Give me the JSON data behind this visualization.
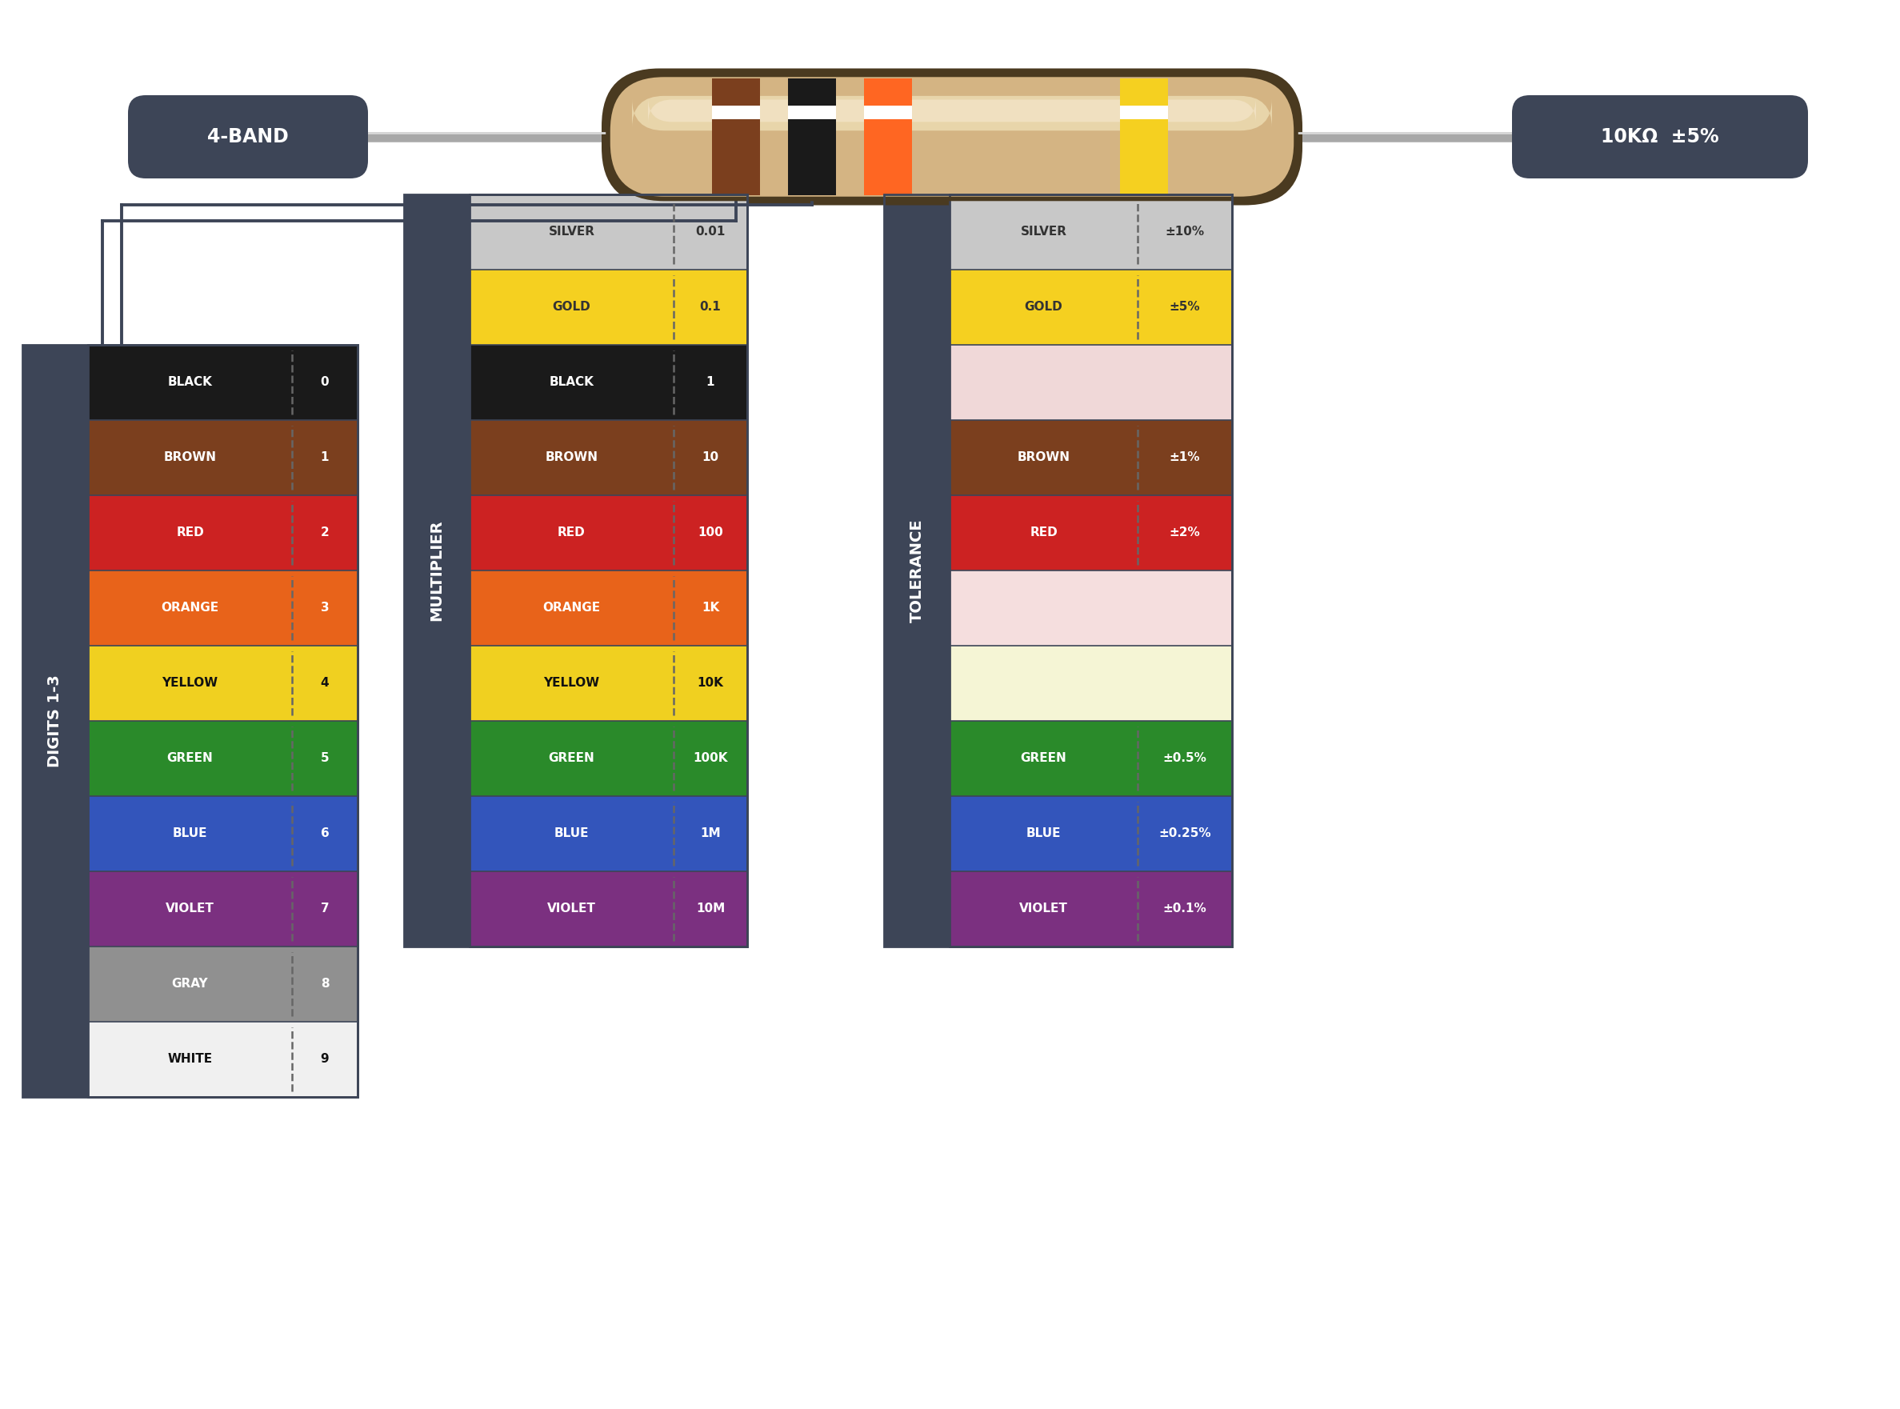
{
  "bg_color": "#ffffff",
  "dark_bg": "#3d4557",
  "resistor_body_color": "#d4b483",
  "digits_rows": [
    {
      "name": "BLACK",
      "color": "#1a1a1a",
      "value": "0",
      "text_color": "#ffffff"
    },
    {
      "name": "BROWN",
      "color": "#7b3f1e",
      "value": "1",
      "text_color": "#ffffff"
    },
    {
      "name": "RED",
      "color": "#cc2222",
      "value": "2",
      "text_color": "#ffffff"
    },
    {
      "name": "ORANGE",
      "color": "#e8631a",
      "value": "3",
      "text_color": "#ffffff"
    },
    {
      "name": "YELLOW",
      "color": "#f0d020",
      "value": "4",
      "text_color": "#111111"
    },
    {
      "name": "GREEN",
      "color": "#2a8a2a",
      "value": "5",
      "text_color": "#ffffff"
    },
    {
      "name": "BLUE",
      "color": "#3355bb",
      "value": "6",
      "text_color": "#ffffff"
    },
    {
      "name": "VIOLET",
      "color": "#7b3080",
      "value": "7",
      "text_color": "#ffffff"
    },
    {
      "name": "GRAY",
      "color": "#909090",
      "value": "8",
      "text_color": "#ffffff"
    },
    {
      "name": "WHITE",
      "color": "#f0f0f0",
      "value": "9",
      "text_color": "#111111"
    }
  ],
  "multiplier_rows": [
    {
      "name": "SILVER",
      "color": "#c8c8c8",
      "value": "0.01",
      "text_color": "#333333"
    },
    {
      "name": "GOLD",
      "color": "#f5d020",
      "value": "0.1",
      "text_color": "#333333"
    },
    {
      "name": "BLACK",
      "color": "#1a1a1a",
      "value": "1",
      "text_color": "#ffffff"
    },
    {
      "name": "BROWN",
      "color": "#7b3f1e",
      "value": "10",
      "text_color": "#ffffff"
    },
    {
      "name": "RED",
      "color": "#cc2222",
      "value": "100",
      "text_color": "#ffffff"
    },
    {
      "name": "ORANGE",
      "color": "#e8631a",
      "value": "1K",
      "text_color": "#ffffff"
    },
    {
      "name": "YELLOW",
      "color": "#f0d020",
      "value": "10K",
      "text_color": "#111111"
    },
    {
      "name": "GREEN",
      "color": "#2a8a2a",
      "value": "100K",
      "text_color": "#ffffff"
    },
    {
      "name": "BLUE",
      "color": "#3355bb",
      "value": "1M",
      "text_color": "#ffffff"
    },
    {
      "name": "VIOLET",
      "color": "#7b3080",
      "value": "10M",
      "text_color": "#ffffff"
    }
  ],
  "tolerance_rows": [
    {
      "name": "SILVER",
      "color": "#c8c8c8",
      "value": "±10%",
      "text_color": "#333333"
    },
    {
      "name": "GOLD",
      "color": "#f5d020",
      "value": "±5%",
      "text_color": "#333333"
    },
    {
      "name": "",
      "color": "#f0d8d8",
      "value": "",
      "text_color": "#111111"
    },
    {
      "name": "BROWN",
      "color": "#7b3f1e",
      "value": "±1%",
      "text_color": "#ffffff"
    },
    {
      "name": "RED",
      "color": "#cc2222",
      "value": "±2%",
      "text_color": "#ffffff"
    },
    {
      "name": "",
      "color": "#f5dede",
      "value": "",
      "text_color": "#111111"
    },
    {
      "name": "",
      "color": "#f5f5d5",
      "value": "",
      "text_color": "#111111"
    },
    {
      "name": "GREEN",
      "color": "#2a8a2a",
      "value": "±0.5%",
      "text_color": "#ffffff"
    },
    {
      "name": "BLUE",
      "color": "#3355bb",
      "value": "±0.25%",
      "text_color": "#ffffff"
    },
    {
      "name": "VIOLET",
      "color": "#7b3080",
      "value": "±0.1%",
      "text_color": "#ffffff"
    }
  ],
  "label_4band": "4-BAND",
  "label_value": "10KΩ  ±5%",
  "label_digits": "DIGITS 1-3",
  "label_multiplier": "MULTIPLIER",
  "label_tolerance": "TOLERANCE",
  "band_colors": [
    "#7b3f1e",
    "#1a1a1a",
    "#ff6622",
    "#f5d020"
  ],
  "lead_color": "#a8a8a8",
  "lead_shine": "#d8d8d8",
  "body_color": "#d4b483",
  "body_outline": "#4a3a20"
}
